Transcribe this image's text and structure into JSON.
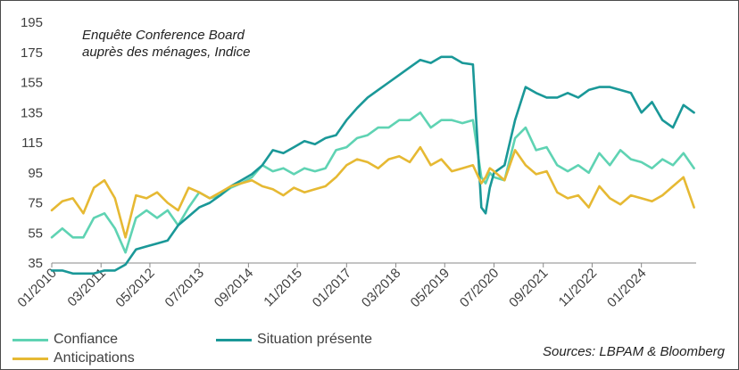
{
  "chart_data": {
    "type": "line",
    "title": "Enquête Conference Board",
    "subtitle": "auprès des ménages, Indice",
    "source": "Sources: LBPAM & Bloomberg",
    "ylim": [
      35,
      195
    ],
    "yticks": [
      35,
      55,
      75,
      95,
      115,
      135,
      155,
      175,
      195
    ],
    "xlim": [
      2010.0,
      2025.3
    ],
    "xticks": [
      {
        "label": "01/2010",
        "x": 2010.0
      },
      {
        "label": "03/2011",
        "x": 2011.17
      },
      {
        "label": "05/2012",
        "x": 2012.33
      },
      {
        "label": "07/2013",
        "x": 2013.5
      },
      {
        "label": "09/2014",
        "x": 2014.67
      },
      {
        "label": "11/2015",
        "x": 2015.83
      },
      {
        "label": "01/2017",
        "x": 2017.0
      },
      {
        "label": "03/2018",
        "x": 2018.17
      },
      {
        "label": "05/2019",
        "x": 2019.33
      },
      {
        "label": "07/2020",
        "x": 2020.5
      },
      {
        "label": "09/2021",
        "x": 2021.67
      },
      {
        "label": "11/2022",
        "x": 2022.83
      },
      {
        "label": "01/2024",
        "x": 2024.0
      }
    ],
    "series": [
      {
        "name": "Confiance",
        "color": "#5fd3b3",
        "x": [
          2010.0,
          2010.25,
          2010.5,
          2010.75,
          2011.0,
          2011.25,
          2011.5,
          2011.75,
          2012.0,
          2012.25,
          2012.5,
          2012.75,
          2013.0,
          2013.25,
          2013.5,
          2013.75,
          2014.0,
          2014.25,
          2014.5,
          2014.75,
          2015.0,
          2015.25,
          2015.5,
          2015.75,
          2016.0,
          2016.25,
          2016.5,
          2016.75,
          2017.0,
          2017.25,
          2017.5,
          2017.75,
          2018.0,
          2018.25,
          2018.5,
          2018.75,
          2019.0,
          2019.25,
          2019.5,
          2019.75,
          2020.0,
          2020.2,
          2020.3,
          2020.4,
          2020.5,
          2020.75,
          2021.0,
          2021.25,
          2021.5,
          2021.75,
          2022.0,
          2022.25,
          2022.5,
          2022.75,
          2023.0,
          2023.25,
          2023.5,
          2023.75,
          2024.0,
          2024.25,
          2024.5,
          2024.75,
          2025.0,
          2025.25
        ],
        "values": [
          52,
          58,
          52,
          52,
          65,
          68,
          58,
          42,
          65,
          70,
          65,
          70,
          60,
          72,
          82,
          78,
          80,
          85,
          88,
          92,
          100,
          96,
          98,
          94,
          98,
          96,
          98,
          110,
          112,
          118,
          120,
          125,
          125,
          130,
          130,
          135,
          125,
          130,
          130,
          128,
          130,
          92,
          88,
          95,
          92,
          90,
          118,
          125,
          110,
          112,
          100,
          96,
          100,
          95,
          108,
          100,
          110,
          104,
          102,
          98,
          104,
          100,
          108,
          98
        ]
      },
      {
        "name": "Situation présente",
        "color": "#1a9898",
        "x": [
          2010.0,
          2010.25,
          2010.5,
          2010.75,
          2011.0,
          2011.25,
          2011.5,
          2011.75,
          2012.0,
          2012.25,
          2012.5,
          2012.75,
          2013.0,
          2013.25,
          2013.5,
          2013.75,
          2014.0,
          2014.25,
          2014.5,
          2014.75,
          2015.0,
          2015.25,
          2015.5,
          2015.75,
          2016.0,
          2016.25,
          2016.5,
          2016.75,
          2017.0,
          2017.25,
          2017.5,
          2017.75,
          2018.0,
          2018.25,
          2018.5,
          2018.75,
          2019.0,
          2019.25,
          2019.5,
          2019.75,
          2020.0,
          2020.2,
          2020.3,
          2020.4,
          2020.5,
          2020.75,
          2021.0,
          2021.25,
          2021.5,
          2021.75,
          2022.0,
          2022.25,
          2022.5,
          2022.75,
          2023.0,
          2023.25,
          2023.5,
          2023.75,
          2024.0,
          2024.25,
          2024.5,
          2024.75,
          2025.0,
          2025.25
        ],
        "values": [
          30,
          30,
          28,
          28,
          28,
          30,
          30,
          34,
          44,
          46,
          48,
          50,
          60,
          66,
          72,
          75,
          80,
          86,
          90,
          94,
          100,
          110,
          108,
          112,
          116,
          114,
          118,
          120,
          130,
          138,
          145,
          150,
          155,
          160,
          165,
          170,
          168,
          172,
          172,
          168,
          167,
          72,
          68,
          85,
          95,
          100,
          130,
          152,
          148,
          145,
          145,
          148,
          145,
          150,
          152,
          152,
          150,
          148,
          135,
          142,
          130,
          125,
          140,
          135
        ]
      },
      {
        "name": "Anticipations",
        "color": "#e6b933",
        "x": [
          2010.0,
          2010.25,
          2010.5,
          2010.75,
          2011.0,
          2011.25,
          2011.5,
          2011.75,
          2012.0,
          2012.25,
          2012.5,
          2012.75,
          2013.0,
          2013.25,
          2013.5,
          2013.75,
          2014.0,
          2014.25,
          2014.5,
          2014.75,
          2015.0,
          2015.25,
          2015.5,
          2015.75,
          2016.0,
          2016.25,
          2016.5,
          2016.75,
          2017.0,
          2017.25,
          2017.5,
          2017.75,
          2018.0,
          2018.25,
          2018.5,
          2018.75,
          2019.0,
          2019.25,
          2019.5,
          2019.75,
          2020.0,
          2020.2,
          2020.3,
          2020.4,
          2020.5,
          2020.75,
          2021.0,
          2021.25,
          2021.5,
          2021.75,
          2022.0,
          2022.25,
          2022.5,
          2022.75,
          2023.0,
          2023.25,
          2023.5,
          2023.75,
          2024.0,
          2024.25,
          2024.5,
          2024.75,
          2025.0,
          2025.25
        ],
        "values": [
          70,
          76,
          78,
          68,
          85,
          90,
          78,
          52,
          80,
          78,
          82,
          75,
          70,
          85,
          82,
          78,
          82,
          86,
          88,
          90,
          86,
          84,
          80,
          85,
          82,
          84,
          86,
          92,
          100,
          104,
          102,
          98,
          104,
          106,
          102,
          112,
          100,
          104,
          96,
          98,
          100,
          88,
          92,
          98,
          96,
          90,
          110,
          100,
          94,
          96,
          82,
          78,
          80,
          72,
          86,
          78,
          74,
          80,
          78,
          76,
          80,
          86,
          92,
          72
        ]
      }
    ]
  },
  "legend": {
    "confiance": "Confiance",
    "situation": "Situation présente",
    "anticipations": "Anticipations"
  },
  "colors": {
    "confiance": "#5fd3b3",
    "situation": "#1a9898",
    "anticipations": "#e6b933"
  }
}
